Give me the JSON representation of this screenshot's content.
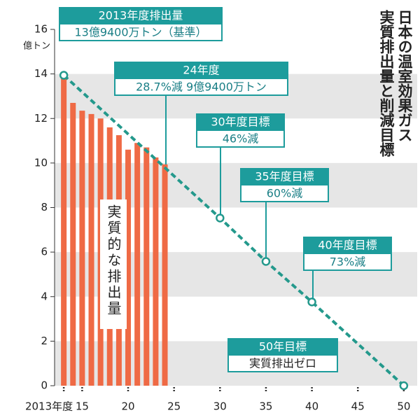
{
  "chart_data": {
    "type": "bar",
    "title_lines": [
      "日本の温室効果ガス",
      "実質排出量と削減目標"
    ],
    "y_label": "億トン",
    "xlim": [
      2012,
      2051
    ],
    "xticks": [
      {
        "value": 2013,
        "label": "2013年度"
      },
      {
        "value": 2015,
        "label": "15"
      },
      {
        "value": 2020,
        "label": "20"
      },
      {
        "value": 2025,
        "label": "25"
      },
      {
        "value": 2030,
        "label": "30"
      },
      {
        "value": 2035,
        "label": "35"
      },
      {
        "value": 2040,
        "label": "40"
      },
      {
        "value": 2045,
        "label": "45"
      },
      {
        "value": 2050,
        "label": "50"
      }
    ],
    "ylim": [
      0,
      16
    ],
    "yticks": [
      0,
      2,
      4,
      6,
      8,
      10,
      12,
      14,
      16
    ],
    "bands": true,
    "bar_label": "実質的な排出量",
    "series": [
      {
        "name": "実質的な排出量",
        "type": "bar",
        "color": "#ef6a45",
        "x": [
          2013,
          2014,
          2015,
          2016,
          2017,
          2018,
          2019,
          2020,
          2021,
          2022,
          2023,
          2024
        ],
        "values": [
          13.94,
          12.7,
          12.35,
          12.2,
          12.0,
          11.6,
          11.25,
          10.6,
          10.9,
          10.7,
          10.25,
          9.94
        ]
      },
      {
        "type": "line",
        "color": "#24998c",
        "x": [
          2013,
          2030,
          2035,
          2040,
          2050
        ],
        "values": [
          13.94,
          7.53,
          5.58,
          3.76,
          0
        ]
      }
    ],
    "annotations": [
      {
        "heading": "2013年度排出量",
        "text": "13億9400万トン（基準）"
      },
      {
        "heading": "24年度",
        "text": "28.7%減  9億9400万トン"
      },
      {
        "heading": "30年度目標",
        "text": "46%減"
      },
      {
        "heading": "35年度目標",
        "text": "60%減"
      },
      {
        "heading": "40年度目標",
        "text": "73%減"
      },
      {
        "heading": "50年目標",
        "text": "実質排出ゼロ"
      }
    ]
  }
}
